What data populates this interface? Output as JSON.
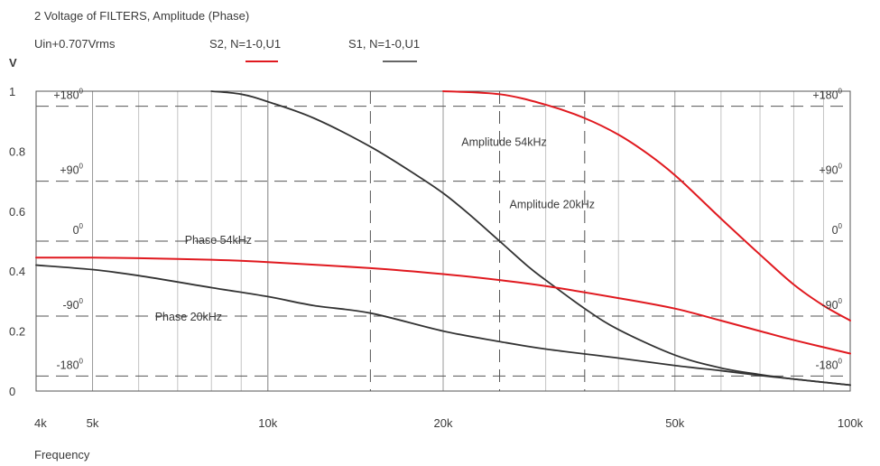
{
  "chart_data": {
    "type": "line",
    "title": "2 Voltage of FILTERS, Amplitude (Phase)",
    "subtitle": "Uin+0.707Vrms",
    "ylabel": "V",
    "xlabel": "Frequency",
    "x_scale": "log",
    "xlim": [
      4000,
      100000
    ],
    "ylim": [
      0,
      1
    ],
    "grid": true,
    "x_ticks": [
      {
        "value": 4000,
        "label": "4k"
      },
      {
        "value": 5000,
        "label": "5k"
      },
      {
        "value": 10000,
        "label": "10k"
      },
      {
        "value": 20000,
        "label": "20k"
      },
      {
        "value": 50000,
        "label": "50k"
      },
      {
        "value": 100000,
        "label": "100k"
      }
    ],
    "y_ticks": [
      {
        "value": 0,
        "label": "0"
      },
      {
        "value": 0.2,
        "label": "0.2"
      },
      {
        "value": 0.4,
        "label": "0.4"
      },
      {
        "value": 0.6,
        "label": "0.6"
      },
      {
        "value": 0.8,
        "label": "0.8"
      },
      {
        "value": 1,
        "label": "1"
      }
    ],
    "phase_axis": [
      {
        "value": 0.95,
        "base": "+180",
        "exp": "0"
      },
      {
        "value": 0.7,
        "base": "+90",
        "exp": "0"
      },
      {
        "value": 0.5,
        "base": "0",
        "exp": "0"
      },
      {
        "value": 0.25,
        "base": "-90",
        "exp": "0"
      },
      {
        "value": 0.05,
        "base": "-180",
        "exp": "0"
      }
    ],
    "reference_lines": [
      {
        "x": 15000,
        "label": ""
      },
      {
        "x": 25000,
        "label": ""
      },
      {
        "x": 35000,
        "label": ""
      }
    ],
    "legend": [
      {
        "label": "S2, N=1-0,U1",
        "color": "#e0191f"
      },
      {
        "label": "S1, N=1-0,U1",
        "color": "#333333"
      }
    ],
    "annotations": [
      {
        "text": "Amplitude 54kHz",
        "x": 21500,
        "y": 0.833
      },
      {
        "text": "Amplitude 20kHz",
        "x": 26000,
        "y": 0.625
      },
      {
        "text": "Phase 54kHz",
        "x": 7200,
        "y": 0.506
      },
      {
        "text": "Phase 20kHz",
        "x": 6400,
        "y": 0.25
      }
    ],
    "series": [
      {
        "name": "Amplitude 54kHz",
        "color": "#e0191f",
        "x": [
          20000,
          25000,
          30000,
          35000,
          40000,
          45000,
          50000,
          55000,
          60000,
          70000,
          80000,
          90000,
          100000
        ],
        "y": [
          1.0,
          0.99,
          0.955,
          0.91,
          0.855,
          0.79,
          0.72,
          0.645,
          0.575,
          0.455,
          0.355,
          0.285,
          0.235
        ]
      },
      {
        "name": "Amplitude 20kHz",
        "color": "#333333",
        "x": [
          8000,
          9000,
          10000,
          12000,
          15000,
          18000,
          20000,
          22000,
          25000,
          28000,
          30000,
          35000,
          40000,
          50000,
          60000,
          70000,
          80000,
          100000
        ],
        "y": [
          1.0,
          0.99,
          0.965,
          0.91,
          0.815,
          0.72,
          0.66,
          0.595,
          0.5,
          0.415,
          0.37,
          0.275,
          0.205,
          0.12,
          0.077,
          0.055,
          0.04,
          0.02
        ]
      },
      {
        "name": "Phase 54kHz",
        "color": "#e0191f",
        "x": [
          4000,
          5000,
          6000,
          8000,
          10000,
          15000,
          20000,
          25000,
          30000,
          40000,
          50000,
          60000,
          70000,
          80000,
          100000
        ],
        "y": [
          0.445,
          0.445,
          0.443,
          0.438,
          0.43,
          0.41,
          0.39,
          0.37,
          0.35,
          0.31,
          0.275,
          0.235,
          0.2,
          0.17,
          0.125
        ]
      },
      {
        "name": "Phase 20kHz",
        "color": "#333333",
        "x": [
          4000,
          5000,
          6000,
          8000,
          10000,
          12000,
          15000,
          20000,
          25000,
          30000,
          40000,
          50000,
          60000,
          70000,
          80000,
          100000
        ],
        "y": [
          0.42,
          0.405,
          0.385,
          0.345,
          0.315,
          0.285,
          0.26,
          0.2,
          0.165,
          0.14,
          0.11,
          0.085,
          0.068,
          0.052,
          0.04,
          0.02
        ]
      }
    ]
  }
}
